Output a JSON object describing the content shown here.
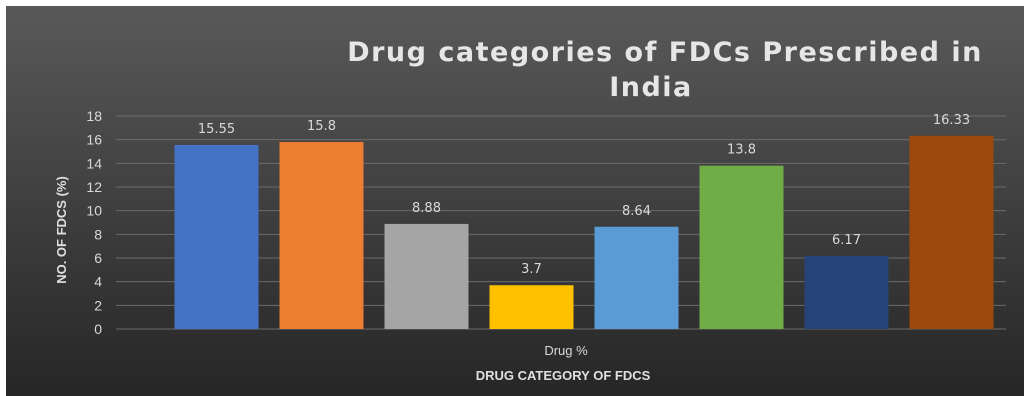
{
  "chart_data": {
    "type": "bar",
    "title_lines": [
      "Drug categories of FDCs Prescribed in",
      "India"
    ],
    "ylabel": "NO. OF FDCS (%)",
    "xlabel": "DRUG CATEGORY OF FDCS",
    "category": "Drug %",
    "ylim": [
      0,
      18
    ],
    "yticks": [
      0,
      2,
      4,
      6,
      8,
      10,
      12,
      14,
      16,
      18
    ],
    "yticks_text": [
      "0",
      "2",
      "4",
      "6",
      "8",
      "10",
      "12",
      "14",
      "16",
      "18"
    ],
    "grid": true,
    "series": [
      {
        "value": 15.55,
        "label": "15.55",
        "color": "#4472c4"
      },
      {
        "value": 15.8,
        "label": "15.8",
        "color": "#ed7d31"
      },
      {
        "value": 8.88,
        "label": "8.88",
        "color": "#a5a5a5"
      },
      {
        "value": 3.7,
        "label": "3.7",
        "color": "#ffc000"
      },
      {
        "value": 8.64,
        "label": "8.64",
        "color": "#5b9bd5"
      },
      {
        "value": 13.8,
        "label": "13.8",
        "color": "#70ad47"
      },
      {
        "value": 6.17,
        "label": "6.17",
        "color": "#264478"
      },
      {
        "value": 16.33,
        "label": "16.33",
        "color": "#9e480e"
      }
    ]
  },
  "colors": {
    "background_top": "#595959",
    "background_bottom": "#262626",
    "gridline": "#6b6b6b"
  }
}
